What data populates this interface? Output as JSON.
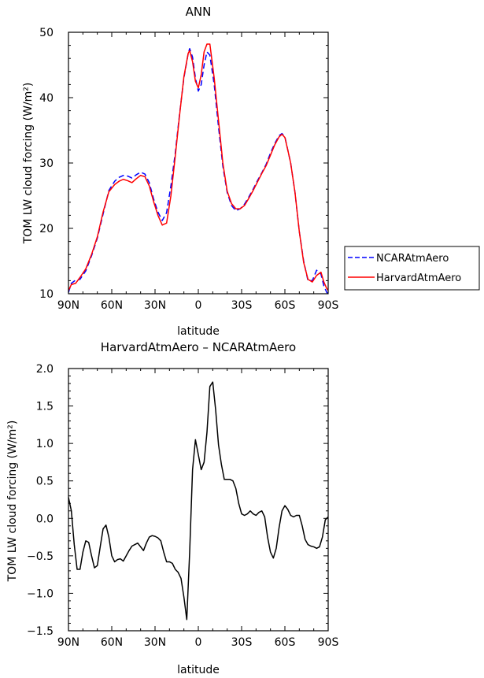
{
  "chart_data": [
    {
      "type": "line",
      "title": "ANN",
      "xlabel": "latitude",
      "ylabel": "TOM LW cloud forcing (W/m²)",
      "xlim": [
        -90,
        90
      ],
      "ylim": [
        10,
        50
      ],
      "xticks": [
        -90,
        -60,
        -30,
        0,
        30,
        60,
        90
      ],
      "xtick_labels": [
        "90N",
        "60N",
        "30N",
        "0",
        "30S",
        "60S",
        "90S"
      ],
      "yticks": [
        10,
        20,
        30,
        40,
        50
      ],
      "ytick_labels": [
        "10",
        "20",
        "30",
        "40",
        "50"
      ],
      "legend": "right",
      "series": [
        {
          "name": "NCARAtmAero",
          "color": "#0000ff",
          "style": "dashed",
          "x": [
            -90,
            -88,
            -85,
            -82,
            -78,
            -74,
            -70,
            -66,
            -62,
            -58,
            -55,
            -52,
            -49,
            -46,
            -43,
            -40,
            -37,
            -34,
            -31,
            -28,
            -25,
            -22,
            -19,
            -16,
            -13,
            -10,
            -7,
            -6,
            -4,
            -2,
            0,
            2,
            4,
            6,
            8,
            11,
            14,
            17,
            20,
            23,
            26,
            29,
            32,
            35,
            38,
            41,
            44,
            47,
            50,
            53,
            56,
            58,
            60,
            62,
            64,
            67,
            70,
            73,
            76,
            79,
            82,
            85,
            87,
            89,
            90
          ],
          "y": [
            10.2,
            11.6,
            12.1,
            12.2,
            13.5,
            15.8,
            18.5,
            22.2,
            25.8,
            27.2,
            27.8,
            28.1,
            28.0,
            27.7,
            28.2,
            28.6,
            28.3,
            27.0,
            24.5,
            22.5,
            21.2,
            22.4,
            26.5,
            31.5,
            37.5,
            43.0,
            46.8,
            47.5,
            46.2,
            43.0,
            41.0,
            42.0,
            45.0,
            47.0,
            46.5,
            42.0,
            35.5,
            29.5,
            25.5,
            23.5,
            22.7,
            23.0,
            23.7,
            24.8,
            26.0,
            27.3,
            28.5,
            29.8,
            31.5,
            33.0,
            34.2,
            34.5,
            34.0,
            32.0,
            30.0,
            25.5,
            19.5,
            15.0,
            12.0,
            12.0,
            13.6,
            13.0,
            11.2,
            10.2,
            10.0
          ]
        },
        {
          "name": "HarvardAtmAero",
          "color": "#ff0000",
          "style": "solid",
          "x": [
            -90,
            -88,
            -85,
            -82,
            -78,
            -74,
            -70,
            -66,
            -62,
            -58,
            -55,
            -52,
            -49,
            -46,
            -43,
            -40,
            -37,
            -34,
            -31,
            -28,
            -25,
            -22,
            -19,
            -16,
            -13,
            -10,
            -7,
            -6,
            -4,
            -2,
            0,
            2,
            4,
            6,
            8,
            11,
            14,
            17,
            20,
            23,
            26,
            29,
            32,
            35,
            38,
            41,
            44,
            47,
            50,
            53,
            56,
            58,
            60,
            62,
            64,
            67,
            70,
            73,
            76,
            79,
            82,
            85,
            87,
            89,
            90
          ],
          "y": [
            10.5,
            11.4,
            11.6,
            12.5,
            13.8,
            16.0,
            18.7,
            22.5,
            25.6,
            26.7,
            27.2,
            27.5,
            27.3,
            27.0,
            27.6,
            28.1,
            27.9,
            26.5,
            24.1,
            22.0,
            20.5,
            20.8,
            25.0,
            31.0,
            37.3,
            43.2,
            46.8,
            47.2,
            45.5,
            42.5,
            41.5,
            43.5,
            47.0,
            48.2,
            48.2,
            43.0,
            36.5,
            30.0,
            25.7,
            23.8,
            23.0,
            23.0,
            23.5,
            24.6,
            25.8,
            27.1,
            28.4,
            29.6,
            31.2,
            32.8,
            34.0,
            34.4,
            33.9,
            32.0,
            30.0,
            25.5,
            19.5,
            14.8,
            12.2,
            11.8,
            12.8,
            13.3,
            11.8,
            10.8,
            10.5
          ]
        }
      ]
    },
    {
      "type": "line",
      "title": "HarvardAtmAero – NCARAtmAero",
      "xlabel": "latitude",
      "ylabel": "TOM LW cloud forcing (W/m²)",
      "xlim": [
        -90,
        90
      ],
      "ylim": [
        -1.5,
        2.0
      ],
      "xticks": [
        -90,
        -60,
        -30,
        0,
        30,
        60,
        90
      ],
      "xtick_labels": [
        "90N",
        "60N",
        "30N",
        "0",
        "30S",
        "60S",
        "90S"
      ],
      "yticks": [
        -1.5,
        -1.0,
        -0.5,
        0.0,
        0.5,
        1.0,
        1.5,
        2.0
      ],
      "ytick_labels": [
        "−1.5",
        "−1.0",
        "−0.5",
        "0.0",
        "0.5",
        "1.0",
        "1.5",
        "2.0"
      ],
      "series": [
        {
          "color": "#000000",
          "style": "solid",
          "x": [
            -90,
            -88,
            -86,
            -84,
            -82,
            -80,
            -78,
            -76,
            -74,
            -72,
            -70,
            -68,
            -66,
            -64,
            -62,
            -60,
            -58,
            -56,
            -54,
            -52,
            -50,
            -48,
            -46,
            -44,
            -42,
            -40,
            -38,
            -36,
            -34,
            -32,
            -30,
            -28,
            -26,
            -24,
            -22,
            -20,
            -18,
            -16,
            -14,
            -12,
            -10,
            -8,
            -6,
            -4,
            -2,
            0,
            2,
            4,
            6,
            8,
            10,
            12,
            14,
            16,
            18,
            20,
            22,
            24,
            26,
            28,
            30,
            32,
            34,
            36,
            38,
            40,
            42,
            44,
            46,
            48,
            50,
            52,
            54,
            56,
            58,
            60,
            62,
            64,
            66,
            68,
            70,
            72,
            74,
            76,
            78,
            80,
            82,
            84,
            86,
            88,
            90
          ],
          "y": [
            0.28,
            0.1,
            -0.35,
            -0.68,
            -0.68,
            -0.45,
            -0.3,
            -0.32,
            -0.5,
            -0.66,
            -0.63,
            -0.38,
            -0.14,
            -0.09,
            -0.25,
            -0.5,
            -0.58,
            -0.55,
            -0.54,
            -0.57,
            -0.5,
            -0.43,
            -0.37,
            -0.35,
            -0.33,
            -0.38,
            -0.43,
            -0.33,
            -0.25,
            -0.23,
            -0.24,
            -0.26,
            -0.3,
            -0.45,
            -0.58,
            -0.58,
            -0.6,
            -0.68,
            -0.72,
            -0.8,
            -1.05,
            -1.35,
            -0.45,
            0.65,
            1.05,
            0.85,
            0.65,
            0.75,
            1.15,
            1.76,
            1.82,
            1.45,
            0.98,
            0.72,
            0.52,
            0.52,
            0.52,
            0.5,
            0.4,
            0.2,
            0.06,
            0.04,
            0.06,
            0.1,
            0.06,
            0.04,
            0.08,
            0.1,
            0.02,
            -0.25,
            -0.45,
            -0.53,
            -0.4,
            -0.12,
            0.1,
            0.17,
            0.12,
            0.04,
            0.02,
            0.04,
            0.04,
            -0.1,
            -0.28,
            -0.35,
            -0.37,
            -0.38,
            -0.4,
            -0.38,
            -0.25,
            -0.02,
            0.02
          ]
        }
      ]
    }
  ]
}
